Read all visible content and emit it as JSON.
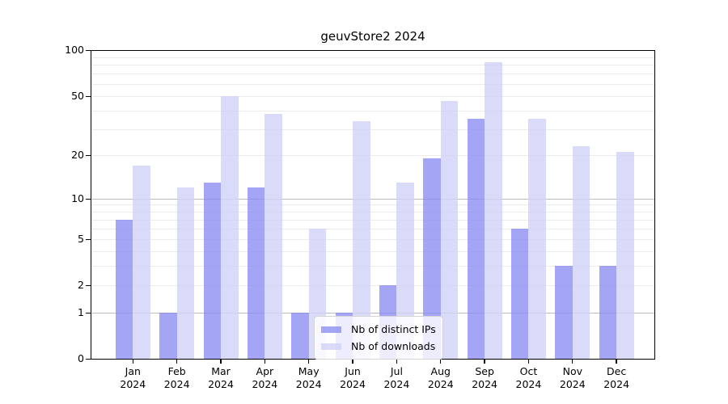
{
  "title": "geuvStore2 2024",
  "chart_data": {
    "type": "bar",
    "title": "geuvStore2 2024",
    "categories": [
      "Jan",
      "Feb",
      "Mar",
      "Apr",
      "May",
      "Jun",
      "Jul",
      "Aug",
      "Sep",
      "Oct",
      "Nov",
      "Dec"
    ],
    "year_label": "2024",
    "series": [
      {
        "name": "Nb of distinct IPs",
        "key": "ips",
        "color": "#8c8cf3",
        "alpha": 0.78,
        "values": [
          7,
          1,
          13,
          12,
          1,
          1,
          2,
          19,
          35,
          6,
          3,
          3
        ]
      },
      {
        "name": "Nb of downloads",
        "key": "downloads",
        "color": "#d1d1f7",
        "alpha": 0.8,
        "values": [
          17,
          12,
          50,
          38,
          6,
          34,
          13,
          46,
          83,
          35,
          23,
          21
        ]
      }
    ],
    "xlabel": "",
    "ylabel": "",
    "scale": "log1p",
    "ylim": [
      0,
      100
    ],
    "y_ticks": [
      0,
      1,
      2,
      5,
      10,
      20,
      50,
      100
    ],
    "grid_major_values": [
      1,
      10
    ],
    "grid_minor_values": [
      2,
      3,
      4,
      5,
      6,
      7,
      8,
      9,
      20,
      30,
      40,
      50,
      60,
      70,
      80,
      90
    ],
    "grid_major_color": "#bcbcbc",
    "grid_minor_color": "#ececec",
    "legend_position": "lower center"
  }
}
